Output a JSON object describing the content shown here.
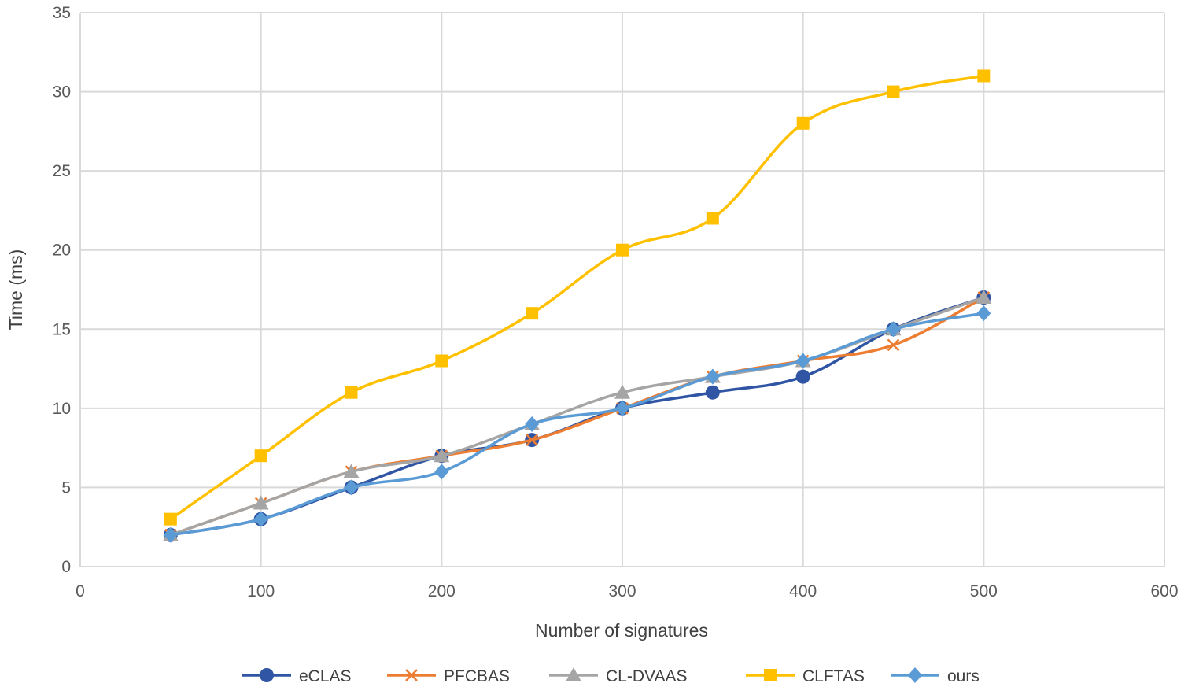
{
  "chart_data": {
    "type": "line",
    "title": "",
    "xlabel": "Number of signatures",
    "ylabel": "Time (ms)",
    "xlim": [
      0,
      600
    ],
    "ylim": [
      0,
      35
    ],
    "xticks": [
      0,
      100,
      200,
      300,
      400,
      500,
      600
    ],
    "yticks": [
      0,
      5,
      10,
      15,
      20,
      25,
      30,
      35
    ],
    "grid": true,
    "legend_position": "bottom",
    "x": [
      50,
      100,
      150,
      200,
      250,
      300,
      350,
      400,
      450,
      500
    ],
    "series": [
      {
        "name": "eCLAS",
        "marker": "circle",
        "color": "#2f55a4",
        "values": [
          2,
          3,
          5,
          7,
          8,
          10,
          11,
          12,
          15,
          17
        ]
      },
      {
        "name": "PFCBAS",
        "marker": "x",
        "color": "#ed7d31",
        "values": [
          2,
          4,
          6,
          7,
          8,
          10,
          12,
          13,
          14,
          17
        ]
      },
      {
        "name": "CL-DVAAS",
        "marker": "triangle",
        "color": "#a5a5a5",
        "values": [
          2,
          4,
          6,
          7,
          9,
          11,
          12,
          13,
          15,
          17
        ]
      },
      {
        "name": "CLFTAS",
        "marker": "square",
        "color": "#ffc000",
        "values": [
          3,
          7,
          11,
          13,
          16,
          20,
          22,
          28,
          30,
          31
        ]
      },
      {
        "name": "ours",
        "marker": "diamond",
        "color": "#5b9bd5",
        "values": [
          2,
          3,
          5,
          6,
          9,
          10,
          12,
          13,
          15,
          16
        ]
      }
    ]
  }
}
